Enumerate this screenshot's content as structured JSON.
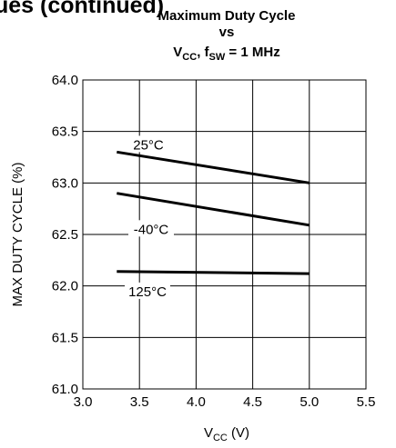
{
  "header_fragment": "ues (continued)",
  "chart_data": {
    "type": "line",
    "title_line1": "Maximum Duty Cycle",
    "title_line2": "vs",
    "title_line3": {
      "v": "V",
      "v_sub": "CC",
      "sep": ", f",
      "f_sub": "SW",
      "rest": " = 1 MHz"
    },
    "xlabel": {
      "main": "V",
      "sub": "CC",
      "unit": " (V)"
    },
    "ylabel": "MAX DUTY CYCLE (%)",
    "xlim": [
      3.0,
      5.5
    ],
    "ylim": [
      61.0,
      64.0
    ],
    "x_ticks": [
      "3.0",
      "3.5",
      "4.0",
      "4.5",
      "5.0",
      "5.5"
    ],
    "y_ticks": [
      "61.0",
      "61.5",
      "62.0",
      "62.5",
      "63.0",
      "63.5",
      "64.0"
    ],
    "grid": true,
    "line_color": "#000000",
    "series": [
      {
        "name": "25°C",
        "x": [
          3.3,
          5.0
        ],
        "y": [
          63.3,
          63.0
        ]
      },
      {
        "name": "-40°C",
        "x": [
          3.3,
          5.0
        ],
        "y": [
          62.9,
          62.59
        ]
      },
      {
        "name": "125°C",
        "x": [
          3.3,
          5.0
        ],
        "y": [
          62.14,
          62.12
        ]
      }
    ]
  }
}
